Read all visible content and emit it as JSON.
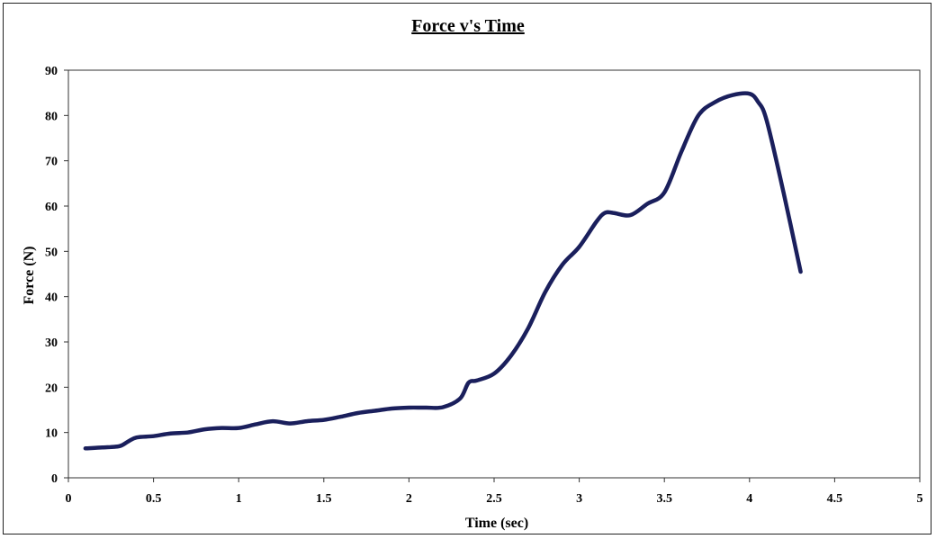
{
  "chart_data": {
    "type": "line",
    "title": "Force v's Time",
    "xlabel": "Time (sec)",
    "ylabel": "Force (N)",
    "xlim": [
      0,
      5
    ],
    "ylim": [
      0,
      90
    ],
    "x_ticks": [
      "0",
      "0.5",
      "1",
      "1.5",
      "2",
      "2.5",
      "3",
      "3.5",
      "4",
      "4.5",
      "5"
    ],
    "y_ticks": [
      "0",
      "10",
      "20",
      "30",
      "40",
      "50",
      "60",
      "70",
      "80",
      "90"
    ],
    "grid": false,
    "legend": "none",
    "series": [
      {
        "color": "#1a1f5c",
        "x": [
          0.1,
          0.2,
          0.3,
          0.35,
          0.4,
          0.5,
          0.6,
          0.7,
          0.8,
          0.9,
          1.0,
          1.1,
          1.2,
          1.3,
          1.4,
          1.5,
          1.6,
          1.7,
          1.8,
          1.9,
          2.0,
          2.1,
          2.2,
          2.3,
          2.35,
          2.4,
          2.5,
          2.6,
          2.7,
          2.8,
          2.9,
          3.0,
          3.1,
          3.15,
          3.2,
          3.3,
          3.4,
          3.5,
          3.6,
          3.7,
          3.8,
          3.9,
          4.0,
          4.05,
          4.1,
          4.2,
          4.3
        ],
        "y": [
          6.5,
          6.7,
          7.0,
          8.0,
          8.9,
          9.2,
          9.8,
          10.0,
          10.7,
          11.0,
          11.0,
          11.8,
          12.5,
          12.0,
          12.5,
          12.8,
          13.5,
          14.3,
          14.8,
          15.3,
          15.5,
          15.5,
          15.6,
          17.5,
          21.0,
          21.5,
          23.0,
          27.0,
          33.0,
          41.0,
          47.0,
          51.0,
          56.5,
          58.5,
          58.5,
          58.0,
          60.5,
          63.0,
          72.0,
          80.0,
          83.0,
          84.5,
          84.8,
          83.0,
          79.0,
          63.0,
          45.5
        ]
      }
    ]
  }
}
